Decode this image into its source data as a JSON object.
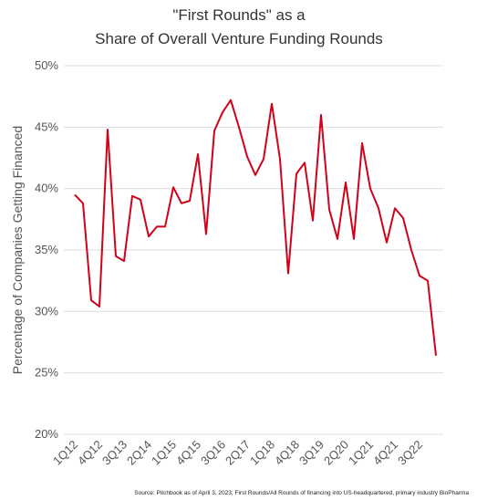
{
  "chart_data": {
    "type": "line",
    "title": [
      "\"First Rounds\" as a",
      "Share of Overall Venture Funding Rounds"
    ],
    "y_label": "Percentage of Companies Getting Financed",
    "source": "Source: Pitchbook as of April 3, 2023;  First Rounds/All Rounds of financing into US-headquartered, primary industry BioPharma",
    "categories": [
      "1Q12",
      null,
      null,
      "4Q12",
      null,
      null,
      "3Q13",
      null,
      null,
      "2Q14",
      null,
      null,
      "1Q15",
      null,
      null,
      "4Q15",
      null,
      null,
      "3Q16",
      null,
      null,
      "2Q17",
      null,
      null,
      "1Q18",
      null,
      null,
      "4Q18",
      null,
      null,
      "3Q19",
      null,
      null,
      "2Q20",
      null,
      null,
      "1Q21",
      null,
      null,
      "4Q21",
      null,
      null,
      "3Q22",
      null,
      null
    ],
    "series": [
      {
        "color": "#d0021b",
        "values": [
          39.5,
          38.8,
          30.9,
          30.4,
          44.8,
          34.5,
          34.1,
          39.4,
          39.1,
          36.1,
          36.9,
          36.9,
          40.1,
          38.8,
          39.0,
          42.8,
          36.3,
          44.7,
          46.2,
          47.2,
          45.0,
          42.6,
          41.1,
          42.4,
          46.9,
          42.4,
          33.1,
          41.2,
          42.1,
          37.4,
          46.0,
          38.3,
          35.9,
          40.5,
          35.9,
          43.7,
          40.0,
          38.4,
          35.6,
          38.4,
          37.6,
          35.0,
          32.9,
          32.5,
          26.4
        ]
      }
    ],
    "ylim": [
      20,
      50
    ],
    "yticks": [
      {
        "value": 20,
        "label": "20%"
      },
      {
        "value": 25,
        "label": "25%"
      },
      {
        "value": 30,
        "label": "30%"
      },
      {
        "value": 35,
        "label": "35%"
      },
      {
        "value": 40,
        "label": "40%"
      },
      {
        "value": 45,
        "label": "45%"
      },
      {
        "value": 50,
        "label": "50%"
      }
    ],
    "grid": true
  }
}
